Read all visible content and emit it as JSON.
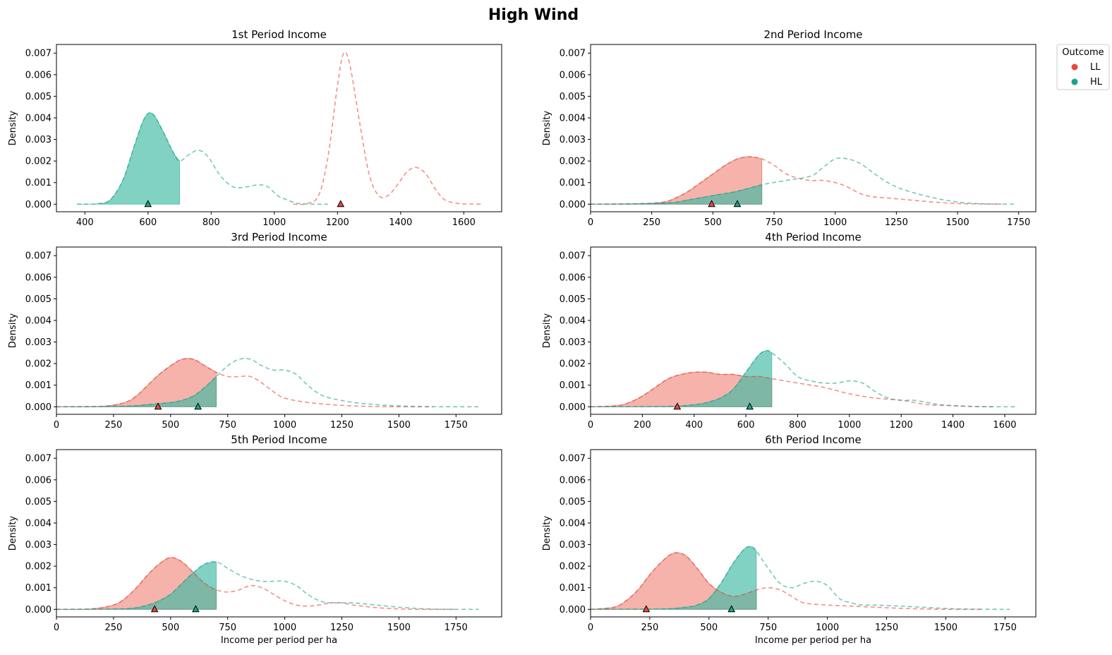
{
  "figure": {
    "title": "High Wind",
    "colors": {
      "LL": "#e8483b",
      "HL": "#1aa38a",
      "LL_fill": "#f08a80",
      "HL_fill": "#3dbaa3"
    }
  },
  "legend": {
    "title": "Outcome",
    "placement": "outside-top-right",
    "items": [
      {
        "label": "LL",
        "color": "#e8483b"
      },
      {
        "label": "HL",
        "color": "#1aa38a"
      }
    ]
  },
  "chart_data": [
    {
      "type": "area",
      "title": "1st Period Income",
      "xlabel": "",
      "ylabel": "Density",
      "xlim": [
        310,
        1720
      ],
      "ylim": [
        -0.00035,
        0.0074
      ],
      "xticks": [
        400,
        600,
        800,
        1000,
        1200,
        1400,
        1600
      ],
      "yticks": [
        0,
        0.001,
        0.002,
        0.003,
        0.004,
        0.005,
        0.006,
        0.007
      ],
      "fill_limit": 700,
      "series": [
        {
          "name": "LL",
          "x": [
            1060,
            1100,
            1140,
            1170,
            1200,
            1220,
            1240,
            1270,
            1300,
            1330,
            1360,
            1390,
            1420,
            1450,
            1480,
            1510,
            1540,
            1580,
            1620,
            1660
          ],
          "y": [
            0.0,
            2e-05,
            0.0004,
            0.0022,
            0.0055,
            0.007,
            0.0064,
            0.0038,
            0.0014,
            0.0004,
            0.0004,
            0.0009,
            0.0015,
            0.0017,
            0.0014,
            0.0007,
            0.0002,
            4e-05,
            1e-05,
            0.0
          ],
          "median": 1210
        },
        {
          "name": "HL",
          "x": [
            375,
            440,
            480,
            520,
            550,
            580,
            600,
            620,
            650,
            680,
            700,
            730,
            760,
            790,
            830,
            870,
            910,
            950,
            980,
            1010,
            1040,
            1070,
            1100,
            1140,
            1170
          ],
          "y": [
            0.0,
            2e-05,
            0.0002,
            0.0011,
            0.0024,
            0.0037,
            0.0042,
            0.0041,
            0.0033,
            0.0024,
            0.002,
            0.0023,
            0.0025,
            0.0022,
            0.0013,
            0.0008,
            0.0008,
            0.0009,
            0.0008,
            0.0004,
            0.0002,
            5e-05,
            1e-05,
            0.0,
            0.0
          ],
          "median": 600
        }
      ]
    },
    {
      "type": "area",
      "title": "2nd Period Income",
      "xlabel": "",
      "ylabel": "Density",
      "xlim": [
        0,
        1820
      ],
      "ylim": [
        -0.00035,
        0.0074
      ],
      "xticks": [
        0,
        250,
        500,
        750,
        1000,
        1250,
        1500,
        1750
      ],
      "yticks": [
        0,
        0.001,
        0.002,
        0.003,
        0.004,
        0.005,
        0.006,
        0.007
      ],
      "fill_limit": 700,
      "series": [
        {
          "name": "LL",
          "x": [
            0,
            200,
            300,
            350,
            400,
            450,
            500,
            550,
            600,
            650,
            700,
            750,
            800,
            850,
            900,
            950,
            1000,
            1050,
            1100,
            1150,
            1200,
            1300,
            1400,
            1500,
            1600,
            1680
          ],
          "y": [
            0.0,
            2e-05,
            0.0001,
            0.0003,
            0.0006,
            0.001,
            0.0014,
            0.0018,
            0.0021,
            0.0022,
            0.0021,
            0.0018,
            0.0014,
            0.0012,
            0.0011,
            0.0011,
            0.001,
            0.0008,
            0.0005,
            0.00035,
            0.0003,
            0.0002,
            0.0001,
            3e-05,
            1e-05,
            0.0
          ],
          "median": 495
        },
        {
          "name": "HL",
          "x": [
            0,
            300,
            400,
            500,
            600,
            700,
            800,
            900,
            950,
            1000,
            1050,
            1100,
            1150,
            1200,
            1250,
            1300,
            1400,
            1500,
            1600,
            1730
          ],
          "y": [
            0.0,
            5e-05,
            0.0002,
            0.0004,
            0.0006,
            0.0009,
            0.0011,
            0.0013,
            0.0017,
            0.0021,
            0.0021,
            0.0019,
            0.0015,
            0.0011,
            0.0008,
            0.0006,
            0.0003,
            0.0001,
            2e-05,
            0.0
          ],
          "median": 600
        }
      ]
    },
    {
      "type": "area",
      "title": "3rd Period Income",
      "xlabel": "",
      "ylabel": "Density",
      "xlim": [
        0,
        1950
      ],
      "ylim": [
        -0.00035,
        0.0074
      ],
      "xticks": [
        0,
        250,
        500,
        750,
        1000,
        1250,
        1500,
        1750
      ],
      "yticks": [
        0,
        0.001,
        0.002,
        0.003,
        0.004,
        0.005,
        0.006,
        0.007
      ],
      "fill_limit": 700,
      "series": [
        {
          "name": "LL",
          "x": [
            0,
            200,
            300,
            350,
            400,
            450,
            500,
            550,
            600,
            650,
            700,
            750,
            800,
            850,
            900,
            950,
            1000,
            1100,
            1200,
            1300,
            1400,
            1500,
            1650
          ],
          "y": [
            0.0,
            2e-05,
            0.0002,
            0.0005,
            0.001,
            0.0015,
            0.0019,
            0.0022,
            0.0022,
            0.0019,
            0.0016,
            0.0014,
            0.0014,
            0.0014,
            0.0011,
            0.0007,
            0.0004,
            0.0002,
            0.0001,
            4e-05,
            1e-05,
            0.0,
            0.0
          ],
          "median": 445
        },
        {
          "name": "HL",
          "x": [
            0,
            300,
            400,
            500,
            550,
            600,
            650,
            700,
            750,
            800,
            850,
            900,
            950,
            1000,
            1050,
            1100,
            1150,
            1200,
            1300,
            1400,
            1500,
            1600,
            1700,
            1860
          ],
          "y": [
            0.0,
            3e-05,
            0.0001,
            0.0002,
            0.0003,
            0.0005,
            0.0009,
            0.0014,
            0.0019,
            0.0022,
            0.0022,
            0.0019,
            0.0017,
            0.0017,
            0.0015,
            0.001,
            0.0006,
            0.0004,
            0.0002,
            0.0001,
            4e-05,
            1e-05,
            0.0,
            0.0
          ],
          "median": 620
        }
      ]
    },
    {
      "type": "area",
      "title": "4th Period Income",
      "xlabel": "",
      "ylabel": "Density",
      "xlim": [
        0,
        1720
      ],
      "ylim": [
        -0.00035,
        0.0074
      ],
      "xticks": [
        0,
        200,
        400,
        600,
        800,
        1000,
        1200,
        1400,
        1600
      ],
      "yticks": [
        0,
        0.001,
        0.002,
        0.003,
        0.004,
        0.005,
        0.006,
        0.007
      ],
      "fill_limit": 700,
      "series": [
        {
          "name": "LL",
          "x": [
            0,
            100,
            150,
            200,
            250,
            300,
            350,
            400,
            450,
            500,
            550,
            600,
            650,
            700,
            800,
            900,
            1000,
            1100,
            1200,
            1300,
            1400,
            1500,
            1560
          ],
          "y": [
            0.0,
            5e-05,
            0.0002,
            0.0005,
            0.0009,
            0.0013,
            0.0015,
            0.0016,
            0.0016,
            0.0015,
            0.0015,
            0.0014,
            0.0014,
            0.0013,
            0.0011,
            0.0009,
            0.0006,
            0.0004,
            0.0003,
            0.0001,
            5e-05,
            1e-05,
            0.0
          ],
          "median": 335
        },
        {
          "name": "HL",
          "x": [
            0,
            300,
            400,
            450,
            500,
            550,
            600,
            650,
            680,
            700,
            750,
            800,
            850,
            900,
            950,
            1000,
            1050,
            1100,
            1150,
            1200,
            1250,
            1300,
            1350,
            1450,
            1550,
            1640
          ],
          "y": [
            0.0,
            2e-05,
            0.0001,
            0.0002,
            0.0004,
            0.0008,
            0.0016,
            0.0024,
            0.0026,
            0.0025,
            0.002,
            0.0014,
            0.0012,
            0.0011,
            0.0011,
            0.0012,
            0.0011,
            0.0007,
            0.0004,
            0.0003,
            0.0003,
            0.0002,
            0.0001,
            2e-05,
            0.0,
            0.0
          ],
          "median": 615
        }
      ]
    },
    {
      "type": "area",
      "title": "5th Period Income",
      "xlabel": "Income per period per ha",
      "ylabel": "Density",
      "xlim": [
        0,
        1950
      ],
      "ylim": [
        -0.00035,
        0.0074
      ],
      "xticks": [
        0,
        250,
        500,
        750,
        1000,
        1250,
        1500,
        1750
      ],
      "yticks": [
        0,
        0.001,
        0.002,
        0.003,
        0.004,
        0.005,
        0.006,
        0.007
      ],
      "fill_limit": 700,
      "series": [
        {
          "name": "LL",
          "x": [
            0,
            150,
            250,
            300,
            350,
            400,
            450,
            500,
            550,
            600,
            650,
            700,
            750,
            800,
            850,
            900,
            950,
            1000,
            1050,
            1100,
            1150,
            1200,
            1250,
            1300,
            1400,
            1500,
            1600,
            1750
          ],
          "y": [
            0.0,
            2e-05,
            0.0002,
            0.0005,
            0.001,
            0.0016,
            0.0021,
            0.0024,
            0.0022,
            0.0017,
            0.0012,
            0.0009,
            0.0008,
            0.0009,
            0.0011,
            0.001,
            0.0007,
            0.0004,
            0.0002,
            0.00015,
            0.0002,
            0.0003,
            0.0003,
            0.0002,
            8e-05,
            2e-05,
            0.0,
            0.0
          ],
          "median": 430
        },
        {
          "name": "HL",
          "x": [
            0,
            300,
            400,
            450,
            500,
            550,
            600,
            650,
            700,
            750,
            800,
            850,
            900,
            950,
            1000,
            1050,
            1100,
            1150,
            1200,
            1250,
            1300,
            1400,
            1500,
            1600,
            1700,
            1850
          ],
          "y": [
            0.0,
            3e-05,
            0.0002,
            0.0004,
            0.0007,
            0.0012,
            0.0017,
            0.0021,
            0.0022,
            0.0019,
            0.0016,
            0.0014,
            0.0013,
            0.0013,
            0.0013,
            0.0011,
            0.0007,
            0.0004,
            0.0003,
            0.0003,
            0.0003,
            0.0002,
            0.0001,
            3e-05,
            0.0,
            0.0
          ],
          "median": 610
        }
      ]
    },
    {
      "type": "area",
      "title": "6th Period Income",
      "xlabel": "Income per period per ha",
      "ylabel": "Density",
      "xlim": [
        0,
        1880
      ],
      "ylim": [
        -0.00035,
        0.0074
      ],
      "xticks": [
        0,
        250,
        500,
        750,
        1000,
        1250,
        1500,
        1750
      ],
      "yticks": [
        0,
        0.001,
        0.002,
        0.003,
        0.004,
        0.005,
        0.006,
        0.007
      ],
      "fill_limit": 700,
      "series": [
        {
          "name": "LL",
          "x": [
            0,
            100,
            150,
            200,
            250,
            300,
            350,
            400,
            450,
            500,
            550,
            600,
            650,
            700,
            750,
            800,
            850,
            900,
            1000,
            1100,
            1200,
            1300,
            1400,
            1500,
            1650
          ],
          "y": [
            0.0,
            0.0001,
            0.0004,
            0.0009,
            0.0016,
            0.0022,
            0.0026,
            0.0025,
            0.0019,
            0.0012,
            0.0008,
            0.0006,
            0.0007,
            0.0009,
            0.001,
            0.0009,
            0.0006,
            0.0003,
            0.0002,
            0.00015,
            0.0001,
            5e-05,
            2e-05,
            0.0,
            0.0
          ],
          "median": 235
        },
        {
          "name": "HL",
          "x": [
            0,
            300,
            400,
            450,
            500,
            550,
            600,
            650,
            680,
            700,
            750,
            800,
            850,
            900,
            950,
            1000,
            1050,
            1100,
            1150,
            1200,
            1300,
            1400,
            1500,
            1600,
            1770
          ],
          "y": [
            0.0,
            2e-05,
            0.0001,
            0.0002,
            0.0005,
            0.0012,
            0.0021,
            0.0028,
            0.0029,
            0.0027,
            0.0019,
            0.0012,
            0.001,
            0.0012,
            0.0013,
            0.0011,
            0.0005,
            0.0003,
            0.0002,
            0.0002,
            0.00015,
            0.0001,
            4e-05,
            1e-05,
            0.0
          ],
          "median": 595
        }
      ]
    }
  ]
}
